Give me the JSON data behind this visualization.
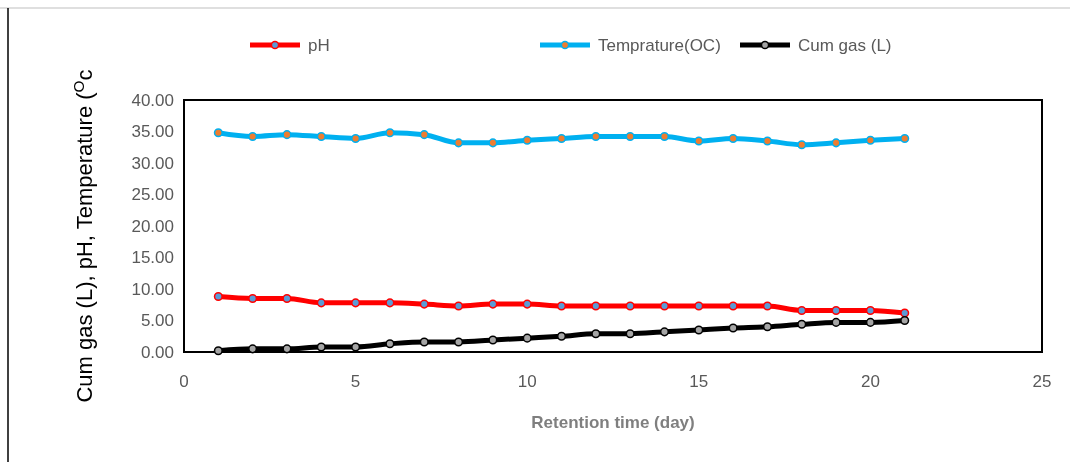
{
  "chart_data": {
    "type": "line",
    "xlabel": "Retention time (day)",
    "ylabel": "Cum gas (L), pH, Temperature ($^{O}$c",
    "x": [
      1,
      2,
      3,
      4,
      5,
      6,
      7,
      8,
      9,
      10,
      11,
      12,
      13,
      14,
      15,
      16,
      17,
      18,
      19,
      20,
      21
    ],
    "series": [
      {
        "name": "pH",
        "color": "#ff0000",
        "values": [
          8.8,
          8.5,
          8.5,
          7.8,
          7.8,
          7.8,
          7.6,
          7.3,
          7.6,
          7.6,
          7.3,
          7.3,
          7.3,
          7.3,
          7.3,
          7.3,
          7.3,
          6.6,
          6.6,
          6.6,
          6.2
        ]
      },
      {
        "name": "Temprature(OC)",
        "color": "#00b0f0",
        "values": [
          34.8,
          34.2,
          34.5,
          34.2,
          33.9,
          34.8,
          34.5,
          33.2,
          33.2,
          33.6,
          33.9,
          34.2,
          34.2,
          34.2,
          33.5,
          33.9,
          33.5,
          32.9,
          33.2,
          33.6,
          33.9
        ]
      },
      {
        "name": "Cum gas (L)",
        "color": "#000000",
        "values": [
          0.2,
          0.5,
          0.5,
          0.8,
          0.8,
          1.3,
          1.6,
          1.6,
          1.9,
          2.2,
          2.5,
          2.9,
          2.9,
          3.2,
          3.5,
          3.8,
          4.0,
          4.4,
          4.7,
          4.7,
          5.0
        ]
      }
    ],
    "xlim": [
      0,
      25
    ],
    "xticks": [
      0,
      5,
      10,
      15,
      20,
      25
    ],
    "ylim": [
      0,
      40
    ],
    "yticks": [
      {
        "value": 0,
        "label": "0.00"
      },
      {
        "value": 5,
        "label": "5.00"
      },
      {
        "value": 10,
        "label": "10.00"
      },
      {
        "value": 15,
        "label": "15.00"
      },
      {
        "value": 20,
        "label": "20.00"
      },
      {
        "value": 25,
        "label": "25.00"
      },
      {
        "value": 30,
        "label": "30.00"
      },
      {
        "value": 35,
        "label": "35.00"
      },
      {
        "value": 40,
        "label": "40.00"
      }
    ],
    "grid": false,
    "legend": "top",
    "marker": "circle",
    "line_style": "solid"
  }
}
